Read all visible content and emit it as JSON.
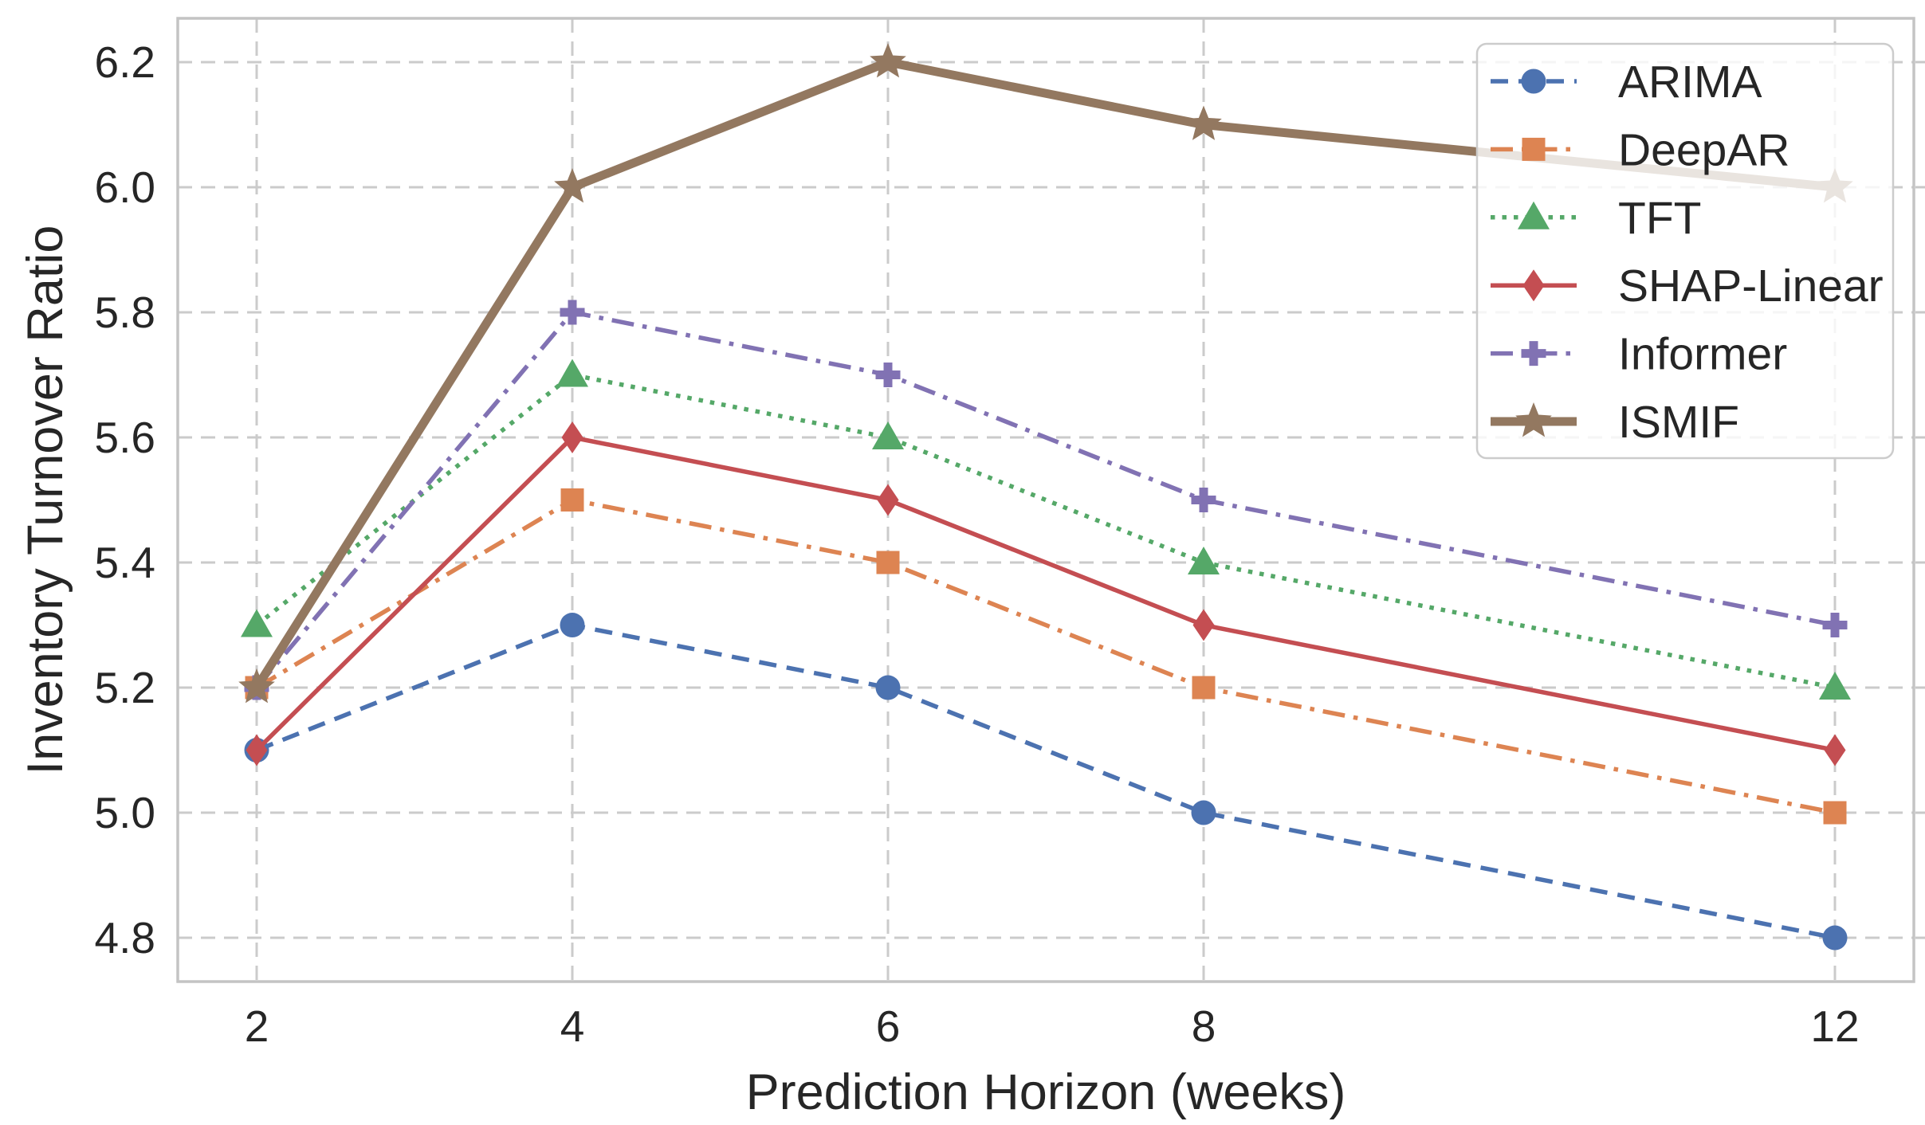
{
  "chart_data": {
    "type": "line",
    "title": "",
    "xlabel": "Prediction Horizon (weeks)",
    "ylabel": "Inventory Turnover Ratio",
    "x": [
      2,
      4,
      6,
      8,
      12
    ],
    "x_tick_labels": [
      "2",
      "4",
      "6",
      "8",
      "12"
    ],
    "y_ticks": [
      4.8,
      5.0,
      5.2,
      5.4,
      5.6,
      5.8,
      6.0,
      6.2
    ],
    "y_tick_labels": [
      "4.8",
      "5.0",
      "5.2",
      "5.4",
      "5.6",
      "5.8",
      "6.0",
      "6.2"
    ],
    "xlim": [
      1.5,
      12.5
    ],
    "ylim": [
      4.73,
      6.27
    ],
    "grid": true,
    "grid_style": "dashed",
    "legend_position": "upper right",
    "colors": {
      "text": "#262626",
      "grid": "#cbcbcb",
      "spine": "#c4c4c4",
      "legend_border": "#cccccc",
      "legend_bg": "rgba(255,255,255,0.8)"
    },
    "series": [
      {
        "name": "ARIMA",
        "values": [
          5.1,
          5.3,
          5.2,
          5.0,
          4.8
        ],
        "color": "#4C72B0",
        "linestyle": "dashed",
        "marker": "circle",
        "linewidth": 5.5
      },
      {
        "name": "DeepAR",
        "values": [
          5.2,
          5.5,
          5.4,
          5.2,
          5.0
        ],
        "color": "#DD8452",
        "linestyle": "dashdot",
        "marker": "square",
        "linewidth": 5.5
      },
      {
        "name": "TFT",
        "values": [
          5.3,
          5.7,
          5.6,
          5.4,
          5.2
        ],
        "color": "#55A868",
        "linestyle": "dotted",
        "marker": "triangle",
        "linewidth": 5.5
      },
      {
        "name": "SHAP-Linear",
        "values": [
          5.1,
          5.6,
          5.5,
          5.3,
          5.1
        ],
        "color": "#C44E52",
        "linestyle": "solid",
        "marker": "diamond",
        "linewidth": 5.5
      },
      {
        "name": "Informer",
        "values": [
          5.2,
          5.8,
          5.7,
          5.5,
          5.3
        ],
        "color": "#8172B3",
        "linestyle": "dashdot",
        "marker": "plus",
        "linewidth": 5.5
      },
      {
        "name": "ISMIF",
        "values": [
          5.2,
          6.0,
          6.2,
          6.1,
          6.0
        ],
        "color": "#937860",
        "linestyle": "solid",
        "marker": "star",
        "linewidth": 11
      }
    ]
  }
}
